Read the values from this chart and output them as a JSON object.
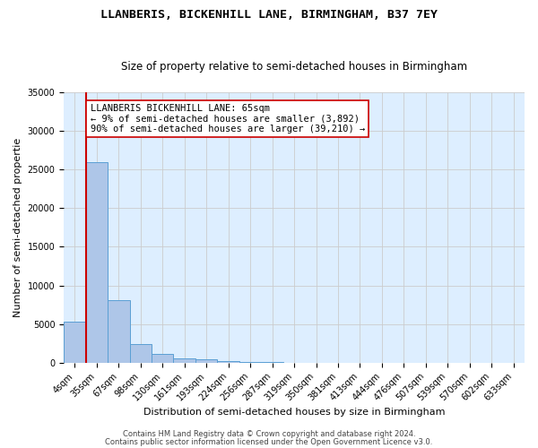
{
  "title": "LLANBERIS, BICKENHILL LANE, BIRMINGHAM, B37 7EY",
  "subtitle": "Size of property relative to semi-detached houses in Birmingham",
  "xlabel": "Distribution of semi-detached houses by size in Birmingham",
  "ylabel": "Number of semi-detached propertie",
  "footnote1": "Contains HM Land Registry data © Crown copyright and database right 2024.",
  "footnote2": "Contains public sector information licensed under the Open Government Licence v3.0.",
  "annotation_line1": "LLANBERIS BICKENHILL LANE: 65sqm",
  "annotation_line2": "← 9% of semi-detached houses are smaller (3,892)",
  "annotation_line3": "90% of semi-detached houses are larger (39,210) →",
  "bar_labels": [
    "4sqm",
    "35sqm",
    "67sqm",
    "98sqm",
    "130sqm",
    "161sqm",
    "193sqm",
    "224sqm",
    "256sqm",
    "287sqm",
    "319sqm",
    "350sqm",
    "381sqm",
    "413sqm",
    "444sqm",
    "476sqm",
    "507sqm",
    "539sqm",
    "570sqm",
    "602sqm",
    "633sqm"
  ],
  "bar_values": [
    5300,
    26000,
    8100,
    2450,
    1100,
    600,
    400,
    250,
    100,
    50,
    0,
    0,
    0,
    0,
    0,
    0,
    0,
    0,
    0,
    0,
    0
  ],
  "bar_color": "#aec6e8",
  "bar_edge_color": "#5a9fd4",
  "vline_color": "#cc0000",
  "ylim": [
    0,
    35000
  ],
  "yticks": [
    0,
    5000,
    10000,
    15000,
    20000,
    25000,
    30000,
    35000
  ],
  "grid_color": "#cccccc",
  "bg_color": "#ddeeff",
  "title_fontsize": 9.5,
  "subtitle_fontsize": 8.5,
  "annotation_fontsize": 7.5,
  "axis_label_fontsize": 8,
  "tick_fontsize": 7,
  "footnote_fontsize": 6
}
